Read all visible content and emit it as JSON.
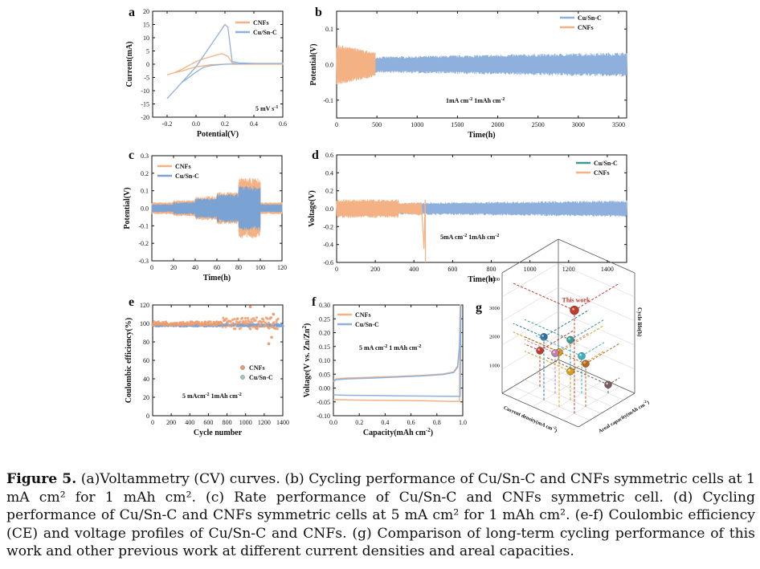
{
  "figure_caption": {
    "label": "Figure 5.",
    "text": "(a)Voltammetry (CV) curves. (b) Cycling performance of Cu/Sn-C and CNFs symmetric cells at 1 mA cm² for 1 mAh cm². (c) Rate performance of Cu/Sn-C and CNFs symmetric cell. (d) Cycling performance of Cu/Sn-C and CNFs symmetric cells at 5 mA cm² for 1 mAh cm². (e-f) Coulombic efficiency (CE) and voltage profiles of Cu/Sn-C and CNFs. (g) Comparison of long-term cycling performance of this work and other previous work at different current densities and areal capacities."
  },
  "colors": {
    "cnfs": "#f4b183",
    "cusnc": "#8fb0dc",
    "cusnc_b": "#7aa3d4",
    "cnfs_e": "#ee9c6c",
    "teal_marker": "#3a9a94"
  },
  "chart_data": [
    {
      "id": "a",
      "type": "line",
      "panel_label": "a",
      "xlabel": "Potential(V)",
      "ylabel": "Current(mA)",
      "xlim": [
        -0.3,
        0.6
      ],
      "ylim": [
        -20,
        20
      ],
      "xticks": [
        "-0.2",
        "0.0",
        "0.2",
        "0.4",
        "0.6"
      ],
      "xtick_values": [
        -0.2,
        0.0,
        0.2,
        0.4,
        0.6
      ],
      "yticks": [
        "-20",
        "-15",
        "-10",
        "-5",
        "0",
        "5",
        "10",
        "15",
        "20"
      ],
      "ytick_values": [
        -20,
        -15,
        -10,
        -5,
        0,
        5,
        10,
        15,
        20
      ],
      "annotation": "5 mV s",
      "series": [
        {
          "name": "CNFs",
          "x": [
            -0.2,
            -0.15,
            -0.1,
            -0.05,
            0.0,
            0.05,
            0.1,
            0.15,
            0.18,
            0.22,
            0.25,
            0.3,
            0.4,
            0.6,
            0.4,
            0.2,
            0.1,
            0.0,
            -0.05,
            -0.1,
            -0.15,
            -0.2
          ],
          "y": [
            -4,
            -3.2,
            -2,
            -0.5,
            1,
            2,
            2.8,
            3.6,
            4,
            3,
            0.5,
            0,
            0,
            0,
            0,
            0,
            -0.2,
            -1,
            -1.8,
            -2.6,
            -3.2,
            -4
          ]
        },
        {
          "name": "Cu/Sn-C",
          "x": [
            -0.2,
            -0.15,
            -0.1,
            -0.05,
            0.0,
            0.05,
            0.1,
            0.15,
            0.2,
            0.22,
            0.25,
            0.3,
            0.4,
            0.6,
            0.4,
            0.2,
            0.1,
            0.05,
            0.0,
            -0.05,
            -0.1,
            -0.15,
            -0.2
          ],
          "y": [
            -13,
            -10,
            -7,
            -4,
            -1,
            3,
            7,
            11,
            15,
            14,
            1,
            0.5,
            0.3,
            0.3,
            0.3,
            0,
            -0.5,
            -1.2,
            -3,
            -5,
            -7,
            -10,
            -13
          ]
        }
      ]
    },
    {
      "id": "b",
      "type": "line",
      "panel_label": "b",
      "xlabel": "Time(h)",
      "ylabel": "Potential(V)",
      "xlim": [
        0,
        3600
      ],
      "ylim": [
        -0.15,
        0.15
      ],
      "xticks": [
        "0",
        "500",
        "1000",
        "1500",
        "2000",
        "2500",
        "3000",
        "3500"
      ],
      "xtick_values": [
        0,
        500,
        1000,
        1500,
        2000,
        2500,
        3000,
        3500
      ],
      "yticks": [
        "-0.1",
        "0.0",
        "0.1"
      ],
      "ytick_values": [
        -0.1,
        0.0,
        0.1
      ],
      "annotation": "1mA cm  1mAh cm",
      "series": [
        {
          "name": "Cu/Sn-C",
          "x_range": [
            0,
            3600
          ],
          "amplitude_start": 0.018,
          "amplitude_end": 0.03
        },
        {
          "name": "CNFs",
          "x_range": [
            0,
            480
          ],
          "amplitude_start": 0.05,
          "amplitude_end": 0.03
        }
      ]
    },
    {
      "id": "c",
      "type": "line",
      "panel_label": "c",
      "xlabel": "Time(h)",
      "ylabel": "Potential(V)",
      "xlim": [
        0,
        120
      ],
      "ylim": [
        -0.3,
        0.3
      ],
      "xticks": [
        "0",
        "20",
        "40",
        "60",
        "80",
        "100",
        "120"
      ],
      "xtick_values": [
        0,
        20,
        40,
        60,
        80,
        100,
        120
      ],
      "yticks": [
        "-0.3",
        "-0.2",
        "-0.1",
        "0.0",
        "0.1",
        "0.2",
        "0.3"
      ],
      "ytick_values": [
        -0.3,
        -0.2,
        -0.1,
        0.0,
        0.1,
        0.2,
        0.3
      ],
      "series": [
        {
          "name": "CNFs",
          "steps": [
            [
              0,
              20,
              0.03
            ],
            [
              20,
              40,
              0.04
            ],
            [
              40,
              60,
              0.06
            ],
            [
              60,
              80,
              0.08
            ],
            [
              80,
              100,
              0.15
            ],
            [
              100,
              120,
              0.03
            ]
          ]
        },
        {
          "name": "Cu/Sn-C",
          "steps": [
            [
              0,
              20,
              0.02
            ],
            [
              20,
              40,
              0.03
            ],
            [
              40,
              60,
              0.05
            ],
            [
              60,
              80,
              0.07
            ],
            [
              80,
              100,
              0.11
            ],
            [
              100,
              120,
              0.02
            ]
          ]
        }
      ]
    },
    {
      "id": "d",
      "type": "line",
      "panel_label": "d",
      "xlabel": "Time(h)",
      "ylabel": "Voltage(V)",
      "xlim": [
        0,
        1500
      ],
      "ylim": [
        -0.6,
        0.6
      ],
      "xticks": [
        "0",
        "200",
        "400",
        "600",
        "800",
        "1000",
        "1200",
        "1400"
      ],
      "xtick_values": [
        0,
        200,
        400,
        600,
        800,
        1000,
        1200,
        1400
      ],
      "yticks": [
        "-0.6",
        "-0.4",
        "-0.2",
        "0.0",
        "0.2",
        "0.4",
        "0.6"
      ],
      "ytick_values": [
        -0.6,
        -0.4,
        -0.2,
        0.0,
        0.2,
        0.4,
        0.6
      ],
      "annotation": "5mA cm  1mAh cm",
      "series": [
        {
          "name": "Cu/Sn-C",
          "x_range": [
            0,
            1500
          ],
          "amplitude_start": 0.05,
          "amplitude_end": 0.08
        },
        {
          "name": "CNFs",
          "x_range": [
            0,
            460
          ],
          "amplitude_start": 0.09,
          "amplitude_end": 0.09,
          "failure_x": 460,
          "failure_y": -0.6
        }
      ]
    },
    {
      "id": "e",
      "type": "scatter",
      "panel_label": "e",
      "xlabel": "Cycle number",
      "ylabel": "Coulombic efficiency(%)",
      "xlim": [
        0,
        1400
      ],
      "ylim": [
        0,
        120
      ],
      "xticks": [
        "0",
        "200",
        "400",
        "600",
        "800",
        "1000",
        "1200",
        "1400"
      ],
      "xtick_values": [
        0,
        200,
        400,
        600,
        800,
        1000,
        1200,
        1400
      ],
      "yticks": [
        "0",
        "20",
        "40",
        "60",
        "80",
        "100",
        "120"
      ],
      "ytick_values": [
        0,
        20,
        40,
        60,
        80,
        100,
        120
      ],
      "annotation": "5 mAcm   1mAh cm",
      "series": [
        {
          "name": "CNFs",
          "x_range": [
            0,
            1350
          ],
          "y_mean": 100,
          "y_spread": 3,
          "outliers_x": [
            1050,
            1250,
            1280,
            1300
          ],
          "outliers_y": [
            118,
            78,
            85,
            110
          ]
        },
        {
          "name": "Cu/Sn-C",
          "x_range": [
            0,
            1400
          ],
          "y_mean": 98,
          "y_spread": 1
        }
      ]
    },
    {
      "id": "f",
      "type": "line",
      "panel_label": "f",
      "xlabel": "Capacity(mAh cm",
      "ylabel": "Voltage(V vs. Zn/Zn",
      "xlim": [
        0,
        1.0
      ],
      "ylim": [
        -0.1,
        0.3
      ],
      "xticks": [
        "0.0",
        "0.2",
        "0.4",
        "0.6",
        "0.8",
        "1.0"
      ],
      "xtick_values": [
        0.0,
        0.2,
        0.4,
        0.6,
        0.8,
        1.0
      ],
      "yticks": [
        "-0.10",
        "-0.05",
        "0.00",
        "0.05",
        "0.10",
        "0.15",
        "0.20",
        "0.25",
        "0.30"
      ],
      "ytick_values": [
        -0.1,
        -0.05,
        0.0,
        0.05,
        0.1,
        0.15,
        0.2,
        0.25,
        0.3
      ],
      "annotation": "5 mA cm    1 mAh cm",
      "series": [
        {
          "name": "CNFs",
          "x": [
            0,
            0.02,
            0.1,
            0.3,
            0.5,
            0.7,
            0.85,
            0.93,
            0.96,
            0.975,
            0.98,
            0.975,
            0.9,
            0.7,
            0.5,
            0.3,
            0.1,
            0.02,
            0
          ],
          "y": [
            0.025,
            0.033,
            0.036,
            0.039,
            0.042,
            0.046,
            0.051,
            0.058,
            0.08,
            0.15,
            0.3,
            -0.048,
            -0.048,
            -0.046,
            -0.045,
            -0.044,
            -0.043,
            -0.042,
            -0.042
          ]
        },
        {
          "name": "Cu/Sn-C",
          "x": [
            0,
            0.02,
            0.1,
            0.3,
            0.5,
            0.7,
            0.85,
            0.93,
            0.96,
            0.975,
            0.985,
            0.98,
            0.9,
            0.7,
            0.5,
            0.3,
            0.1,
            0.02,
            0
          ],
          "y": [
            0.022,
            0.03,
            0.033,
            0.036,
            0.04,
            0.044,
            0.049,
            0.056,
            0.075,
            0.15,
            0.3,
            -0.03,
            -0.03,
            -0.029,
            -0.028,
            -0.027,
            -0.026,
            -0.025,
            -0.024
          ]
        }
      ]
    },
    {
      "id": "g",
      "type": "scatter",
      "panel_label": "g",
      "xlabel": "Current density(mA cm",
      "ylabel": "Areal capacity(mAh cm",
      "zlabel": "Cycle life(h)",
      "zticks": [
        "1000",
        "2000",
        "3000",
        "4000"
      ],
      "ztick_values": [
        1000,
        2000,
        3000,
        4000
      ],
      "annotation": "This work",
      "points": [
        {
          "current_density": 1,
          "areal_capacity": 1,
          "cycle_life": 3600,
          "color": "#c0392b"
        },
        {
          "current_density": 2,
          "areal_capacity": 2,
          "cycle_life": 2100,
          "color": "#3a9a94"
        },
        {
          "current_density": 3,
          "areal_capacity": 1,
          "cycle_life": 2200,
          "color": "#2f6f9f"
        },
        {
          "current_density": 2,
          "areal_capacity": 1,
          "cycle_life": 1900,
          "color": "#d4a017"
        },
        {
          "current_density": 1,
          "areal_capacity": 2,
          "cycle_life": 1500,
          "color": "#b5651d"
        },
        {
          "current_density": 3,
          "areal_capacity": 2,
          "cycle_life": 1400,
          "color": "#c77dab"
        },
        {
          "current_density": 2,
          "areal_capacity": 3,
          "cycle_life": 1300,
          "color": "#3ab3c0"
        },
        {
          "current_density": 4,
          "areal_capacity": 2,
          "cycle_life": 1250,
          "color": "#c0392b"
        },
        {
          "current_density": 2,
          "areal_capacity": 2,
          "cycle_life": 1000,
          "color": "#d4a017"
        },
        {
          "current_density": 1,
          "areal_capacity": 4,
          "cycle_life": 300,
          "color": "#7a5a5a"
        }
      ]
    }
  ],
  "legend_labels": {
    "cnfs": "CNFs",
    "cusnc": "Cu/Sn-C"
  },
  "superscripts": {
    "minus_one": "-1",
    "minus_two": "-2",
    "two": "2",
    "close_paren": ")"
  }
}
